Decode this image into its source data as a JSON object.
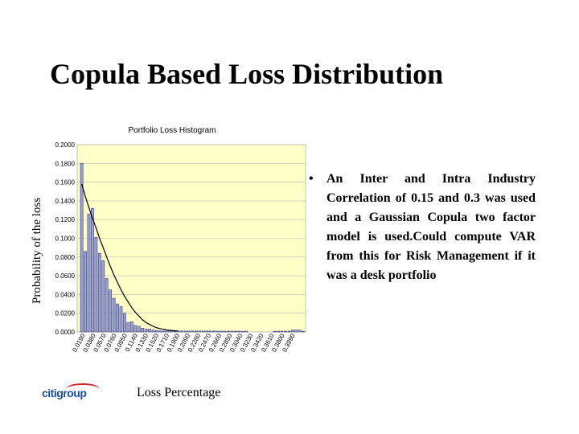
{
  "slide": {
    "title": "Copula Based Loss Distribution",
    "bullet": "An Inter and Intra Industry Correlation of 0.15 and 0.3 was used and a Gaussian Copula two factor model is used.Could compute VAR from this for Risk Management if it was a desk portfolio",
    "logo": "citigroup"
  },
  "colors": {
    "plot_background": "#ffffc8",
    "bar_fill": "#9aa0d8",
    "bar_stroke": "#3a3f7a",
    "curve": "#000000",
    "logo_blue": "#1a4f9c",
    "logo_red": "#d0202e"
  },
  "chart_data": {
    "type": "bar",
    "title": "Portfolio Loss Histogram",
    "xlabel": "Loss Percentage",
    "ylabel": "Probability of the loss",
    "ylim": [
      0,
      0.2
    ],
    "y_ticks": [
      "0.2000",
      "0.1800",
      "0.1600",
      "0.1400",
      "0.1200",
      "0.1000",
      "0.0800",
      "0.0600",
      "0.0400",
      "0.0200",
      "0.0000"
    ],
    "x_tick_labels": [
      "0.0190",
      "0.0380",
      "0.0570",
      "0.0760",
      "0.0950",
      "0.1140",
      "0.1330",
      "0.1520",
      "0.1710",
      "0.1900",
      "0.2090",
      "0.2280",
      "0.2470",
      "0.2660",
      "0.2850",
      "0.3040",
      "0.3230",
      "0.3420",
      "0.3610",
      "0.3800",
      "0.3990"
    ],
    "grid": true,
    "values": [
      0.18,
      0.086,
      0.126,
      0.132,
      0.101,
      0.084,
      0.076,
      0.057,
      0.045,
      0.036,
      0.03,
      0.027,
      0.02,
      0.01,
      0.011,
      0.007,
      0.006,
      0.004,
      0.003,
      0.003,
      0.002,
      0.0015,
      0.0012,
      0.001,
      0.001,
      0.001,
      0.001,
      0.001,
      0.001,
      0.001,
      0.001,
      0.001,
      0.001,
      0.001,
      0.001,
      0.001,
      0.001,
      0.001,
      0.0008,
      0.0008,
      0.0008,
      0.0008,
      0.0008,
      0.0008,
      0.0008,
      0.0008,
      0.0008,
      0,
      0,
      0,
      0,
      0,
      0,
      0,
      0.0008,
      0.0008,
      0.0008,
      0.0008,
      0.0008,
      0.002,
      0.002,
      0.002,
      0.0008
    ],
    "fit_curve": [
      0.158,
      0.145,
      0.133,
      0.122,
      0.111,
      0.1,
      0.09,
      0.08,
      0.07,
      0.061,
      0.053,
      0.045,
      0.038,
      0.032,
      0.026,
      0.021,
      0.017,
      0.013,
      0.01,
      0.008,
      0.006,
      0.0045,
      0.0035,
      0.0027,
      0.002,
      0.0016,
      0.0012,
      0.001
    ]
  }
}
